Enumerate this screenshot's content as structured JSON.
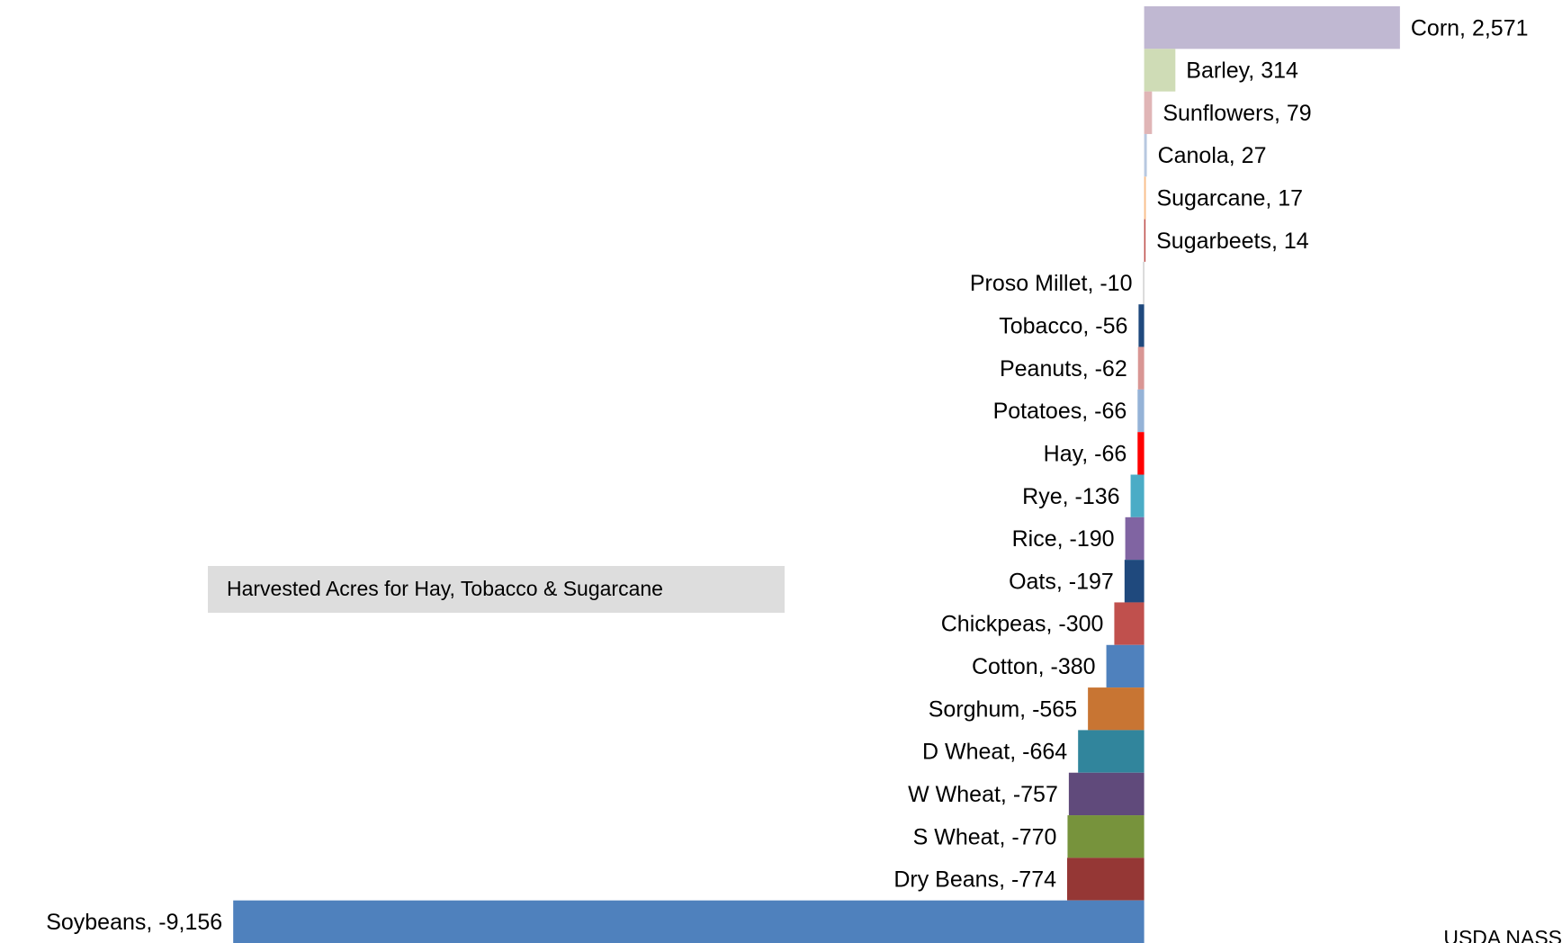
{
  "chart_data": {
    "type": "hbar",
    "values": [
      2571,
      314,
      79,
      27,
      17,
      14,
      -10,
      -56,
      -62,
      -66,
      -66,
      -136,
      -190,
      -197,
      -300,
      -380,
      -565,
      -664,
      -757,
      -770,
      -774,
      -9156
    ],
    "value_labels": [
      "Corn, 2,571",
      "Barley, 314",
      "Sunflowers, 79",
      "Canola, 27",
      "Sugarcane, 17",
      "Sugarbeets, 14",
      "Proso Millet, -10",
      "Tobacco, -56",
      "Peanuts, -62",
      "Potatoes, -66",
      "Hay, -66",
      "Rye, -136",
      "Rice, -190",
      "Oats, -197",
      "Chickpeas, -300",
      "Cotton, -380",
      "Sorghum, -565",
      "D Wheat, -664",
      "W Wheat, -757",
      "S Wheat, -770",
      "Dry Beans, -774",
      "Soybeans, -9,156"
    ],
    "colors": [
      "#c0b8d2",
      "#cfdcb6",
      "#e0b5b6",
      "#b8c8e0",
      "#f9be8a",
      "#c0504d",
      "#bfbfbf",
      "#1f497d",
      "#d99694",
      "#95b3d7",
      "#ff0000",
      "#4bacc6",
      "#8064a2",
      "#1f497d",
      "#c0504d",
      "#4f81bd",
      "#c87533",
      "#31859c",
      "#604a7b",
      "#77933c",
      "#953735",
      "#4f81bd"
    ],
    "xlim": [
      -11500,
      4200
    ],
    "annotation": "Harvested Acres for Hay, Tobacco & Sugarcane",
    "source": "USDA NASS"
  }
}
